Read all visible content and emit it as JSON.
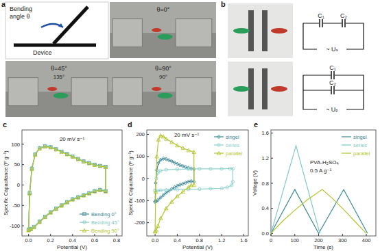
{
  "panel_a": {
    "label": "a",
    "schematic": {
      "caption": [
        "Bending",
        "angle θ"
      ],
      "device": "Device"
    },
    "photos": [
      {
        "angle": "θ=0°"
      },
      {
        "angle": "θ=45°",
        "inner": "135°"
      },
      {
        "angle": "θ=90°",
        "inner": "90°"
      }
    ]
  },
  "panel_b": {
    "label": "b",
    "series_circuit": {
      "c1": "C₁",
      "c2": "C₂",
      "source": "~ Uₛ"
    },
    "parallel_circuit": {
      "c1": "C₁",
      "c2": "C₂",
      "source": "~ Uₚ"
    }
  },
  "chart_data": [
    {
      "type": "line",
      "panel_label": "c",
      "title": "20 mV s⁻¹",
      "x_label": "Potential (V)",
      "y_label": "Specific Capacitance (F g⁻¹)",
      "xlim": [
        -0.06,
        0.85
      ],
      "xticks": [
        {
          "value": 0,
          "label": "0.0"
        },
        {
          "value": 0.2,
          "label": "0.2"
        },
        {
          "value": 0.4,
          "label": "0.4"
        },
        {
          "value": 0.6,
          "label": "0.6"
        },
        {
          "value": 0.8,
          "label": "0.8"
        }
      ],
      "ylim": [
        -125,
        135
      ],
      "yticks": [
        -100,
        -50,
        0,
        50,
        100
      ],
      "grid": false,
      "legend": "lower right",
      "series": [
        {
          "name": "Bending 0°",
          "color": "#3d8a9a",
          "marker": "square",
          "x": [
            0,
            0.01,
            0.03,
            0.06,
            0.1,
            0.15,
            0.2,
            0.25,
            0.3,
            0.35,
            0.4,
            0.45,
            0.5,
            0.55,
            0.6,
            0.65,
            0.7,
            0.7,
            0.65,
            0.6,
            0.55,
            0.5,
            0.45,
            0.4,
            0.35,
            0.3,
            0.25,
            0.2,
            0.15,
            0.1,
            0.05,
            0.02,
            0
          ],
          "values": [
            -110,
            -20,
            40,
            75,
            90,
            95,
            93,
            88,
            82,
            76,
            70,
            64,
            58,
            54,
            50,
            47,
            45,
            -15,
            -12,
            -15,
            -20,
            -25,
            -30,
            -35,
            -42,
            -50,
            -58,
            -67,
            -78,
            -90,
            -103,
            -108,
            -110
          ]
        },
        {
          "name": "Bending 45°",
          "color": "#7fc9c4",
          "marker": "circle",
          "x": [
            0,
            0.01,
            0.03,
            0.06,
            0.1,
            0.15,
            0.2,
            0.25,
            0.3,
            0.35,
            0.4,
            0.45,
            0.5,
            0.55,
            0.6,
            0.65,
            0.7,
            0.7,
            0.65,
            0.6,
            0.55,
            0.5,
            0.45,
            0.4,
            0.35,
            0.3,
            0.25,
            0.2,
            0.15,
            0.1,
            0.05,
            0.02,
            0
          ],
          "values": [
            -108,
            -18,
            42,
            76,
            91,
            96,
            94,
            88,
            82,
            76,
            70,
            64,
            58,
            54,
            50,
            47,
            45,
            -14,
            -11,
            -14,
            -19,
            -24,
            -29,
            -34,
            -41,
            -49,
            -57,
            -66,
            -77,
            -89,
            -102,
            -107,
            -108
          ]
        },
        {
          "name": "Bending 90°",
          "color": "#b5c42e",
          "marker": "triangle",
          "x": [
            0,
            0.01,
            0.03,
            0.06,
            0.1,
            0.15,
            0.2,
            0.25,
            0.3,
            0.35,
            0.4,
            0.45,
            0.5,
            0.55,
            0.6,
            0.65,
            0.7,
            0.7,
            0.65,
            0.6,
            0.55,
            0.5,
            0.45,
            0.4,
            0.35,
            0.3,
            0.25,
            0.2,
            0.15,
            0.1,
            0.05,
            0.02,
            0
          ],
          "values": [
            -111,
            -21,
            39,
            74,
            89,
            94,
            92,
            87,
            81,
            75,
            69,
            63,
            57,
            53,
            49,
            46,
            44,
            -16,
            -13,
            -16,
            -21,
            -26,
            -31,
            -36,
            -43,
            -51,
            -59,
            -68,
            -79,
            -91,
            -104,
            -109,
            -111
          ]
        }
      ]
    },
    {
      "type": "line",
      "panel_label": "d",
      "title": "20 mV s⁻¹",
      "x_label": "Potential (V)",
      "y_label": "Specific Capacitance (F g⁻¹)",
      "xlim": [
        -0.15,
        1.68
      ],
      "xticks": [
        {
          "value": 0,
          "label": "0.0"
        },
        {
          "value": 0.4,
          "label": "0.4"
        },
        {
          "value": 0.8,
          "label": "0.8"
        },
        {
          "value": 1.2,
          "label": "1.2"
        },
        {
          "value": 1.6,
          "label": "1.6"
        }
      ],
      "ylim": [
        -260,
        220
      ],
      "yticks": [
        -200,
        -100,
        0,
        100,
        200
      ],
      "grid": false,
      "legend": "upper right",
      "series": [
        {
          "name": "singel",
          "color": "#3d8a9a",
          "marker": "diamond",
          "x": [
            0,
            0.01,
            0.03,
            0.06,
            0.1,
            0.15,
            0.2,
            0.25,
            0.3,
            0.35,
            0.4,
            0.45,
            0.5,
            0.55,
            0.6,
            0.65,
            0.7,
            0.7,
            0.65,
            0.6,
            0.55,
            0.5,
            0.45,
            0.4,
            0.35,
            0.3,
            0.25,
            0.2,
            0.15,
            0.1,
            0.05,
            0.02,
            0
          ],
          "values": [
            -105,
            -20,
            38,
            70,
            85,
            90,
            88,
            83,
            78,
            72,
            66,
            61,
            56,
            52,
            48,
            45,
            43,
            -15,
            -12,
            -14,
            -19,
            -24,
            -28,
            -33,
            -40,
            -47,
            -55,
            -64,
            -75,
            -86,
            -98,
            -103,
            -105
          ]
        },
        {
          "name": "series",
          "color": "#8fd3cf",
          "marker": "circle",
          "x": [
            0,
            0.02,
            0.05,
            0.1,
            0.2,
            0.4,
            0.6,
            0.8,
            1.0,
            1.2,
            1.35,
            1.4,
            1.4,
            1.38,
            1.3,
            1.2,
            1.0,
            0.8,
            0.6,
            0.4,
            0.2,
            0.1,
            0.05,
            0
          ],
          "values": [
            -55,
            0,
            25,
            35,
            40,
            42,
            43,
            44,
            44,
            44,
            45,
            45,
            -15,
            -30,
            -40,
            -44,
            -46,
            -48,
            -49,
            -50,
            -52,
            -53,
            -55,
            -55
          ]
        },
        {
          "name": "parallel",
          "color": "#b5c42e",
          "marker": "triangle",
          "x": [
            0,
            0.01,
            0.03,
            0.06,
            0.1,
            0.15,
            0.2,
            0.3,
            0.4,
            0.5,
            0.6,
            0.7,
            0.7,
            0.65,
            0.6,
            0.5,
            0.4,
            0.3,
            0.2,
            0.1,
            0.05,
            0.02,
            0
          ],
          "values": [
            -240,
            -60,
            100,
            175,
            195,
            190,
            180,
            165,
            150,
            138,
            128,
            120,
            -30,
            -30,
            -40,
            -60,
            -80,
            -105,
            -135,
            -180,
            -215,
            -235,
            -240
          ]
        }
      ]
    },
    {
      "type": "line",
      "panel_label": "e",
      "annotations": [
        "PVA-H₂SO₄",
        "0.5 A g⁻¹"
      ],
      "x_label": "Time (s)",
      "y_label": "Voltage (V)",
      "xlim": [
        0,
        440
      ],
      "xticks": [
        0,
        100,
        200,
        300,
        400
      ],
      "ylim": [
        -0.04,
        1.65
      ],
      "yticks": [
        {
          "value": 0,
          "label": "0.0"
        },
        {
          "value": 0.4,
          "label": "0.4"
        },
        {
          "value": 0.8,
          "label": "0.8"
        },
        {
          "value": 1.2,
          "label": "1.2"
        },
        {
          "value": 1.6,
          "label": "1.6"
        }
      ],
      "grid": false,
      "legend": "upper right",
      "series": [
        {
          "name": "singel",
          "color": "#3d8a9a",
          "x": [
            0,
            100,
            200,
            305,
            405
          ],
          "values": [
            0,
            0.7,
            0,
            0.7,
            0
          ]
        },
        {
          "name": "series",
          "color": "#7fc9c4",
          "x": [
            0,
            105,
            205
          ],
          "values": [
            0,
            1.4,
            0
          ]
        },
        {
          "name": "parallel",
          "color": "#b5c42e",
          "x": [
            0,
            50,
            100,
            150,
            215,
            260,
            300,
            350,
            400
          ],
          "values": [
            0,
            0.2,
            0.37,
            0.53,
            0.7,
            0.55,
            0.4,
            0.2,
            0
          ]
        }
      ]
    }
  ]
}
